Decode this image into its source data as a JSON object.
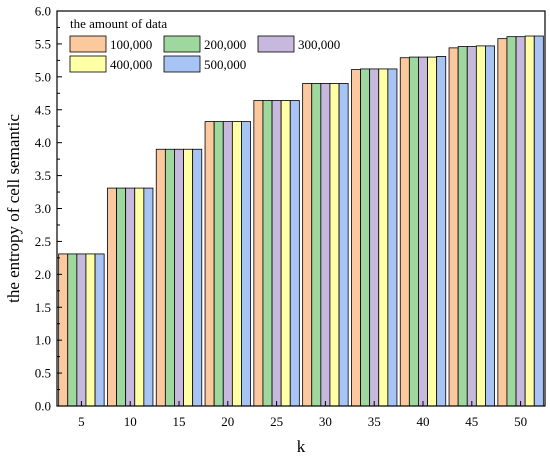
{
  "chart_data": {
    "type": "bar",
    "title": "",
    "xlabel": "k",
    "ylabel": "the entropy of cell semantic",
    "ylim": [
      0,
      6
    ],
    "yticks": [
      "0.0",
      "0.5",
      "1.0",
      "1.5",
      "2.0",
      "2.5",
      "3.0",
      "3.5",
      "4.0",
      "4.5",
      "5.0",
      "5.5",
      "6.0"
    ],
    "categories": [
      "5",
      "10",
      "15",
      "20",
      "25",
      "30",
      "35",
      "40",
      "45",
      "50"
    ],
    "legend": {
      "title": "the amount of data",
      "position": "top-left"
    },
    "grid": false,
    "series": [
      {
        "name": "100,000",
        "color": "#fcc89e",
        "values": [
          2.31,
          3.31,
          3.9,
          4.32,
          4.64,
          4.9,
          5.11,
          5.29,
          5.44,
          5.58
        ]
      },
      {
        "name": "200,000",
        "color": "#9fd89e",
        "values": [
          2.31,
          3.31,
          3.9,
          4.32,
          4.64,
          4.9,
          5.12,
          5.3,
          5.46,
          5.61
        ]
      },
      {
        "name": "300,000",
        "color": "#c7b9de",
        "values": [
          2.31,
          3.31,
          3.9,
          4.32,
          4.64,
          4.9,
          5.12,
          5.3,
          5.46,
          5.61
        ]
      },
      {
        "name": "400,000",
        "color": "#ffffa6",
        "values": [
          2.31,
          3.31,
          3.9,
          4.32,
          4.64,
          4.9,
          5.12,
          5.3,
          5.47,
          5.62
        ]
      },
      {
        "name": "500,000",
        "color": "#a7c4f4",
        "values": [
          2.31,
          3.31,
          3.9,
          4.32,
          4.64,
          4.9,
          5.12,
          5.31,
          5.47,
          5.62
        ]
      }
    ]
  }
}
